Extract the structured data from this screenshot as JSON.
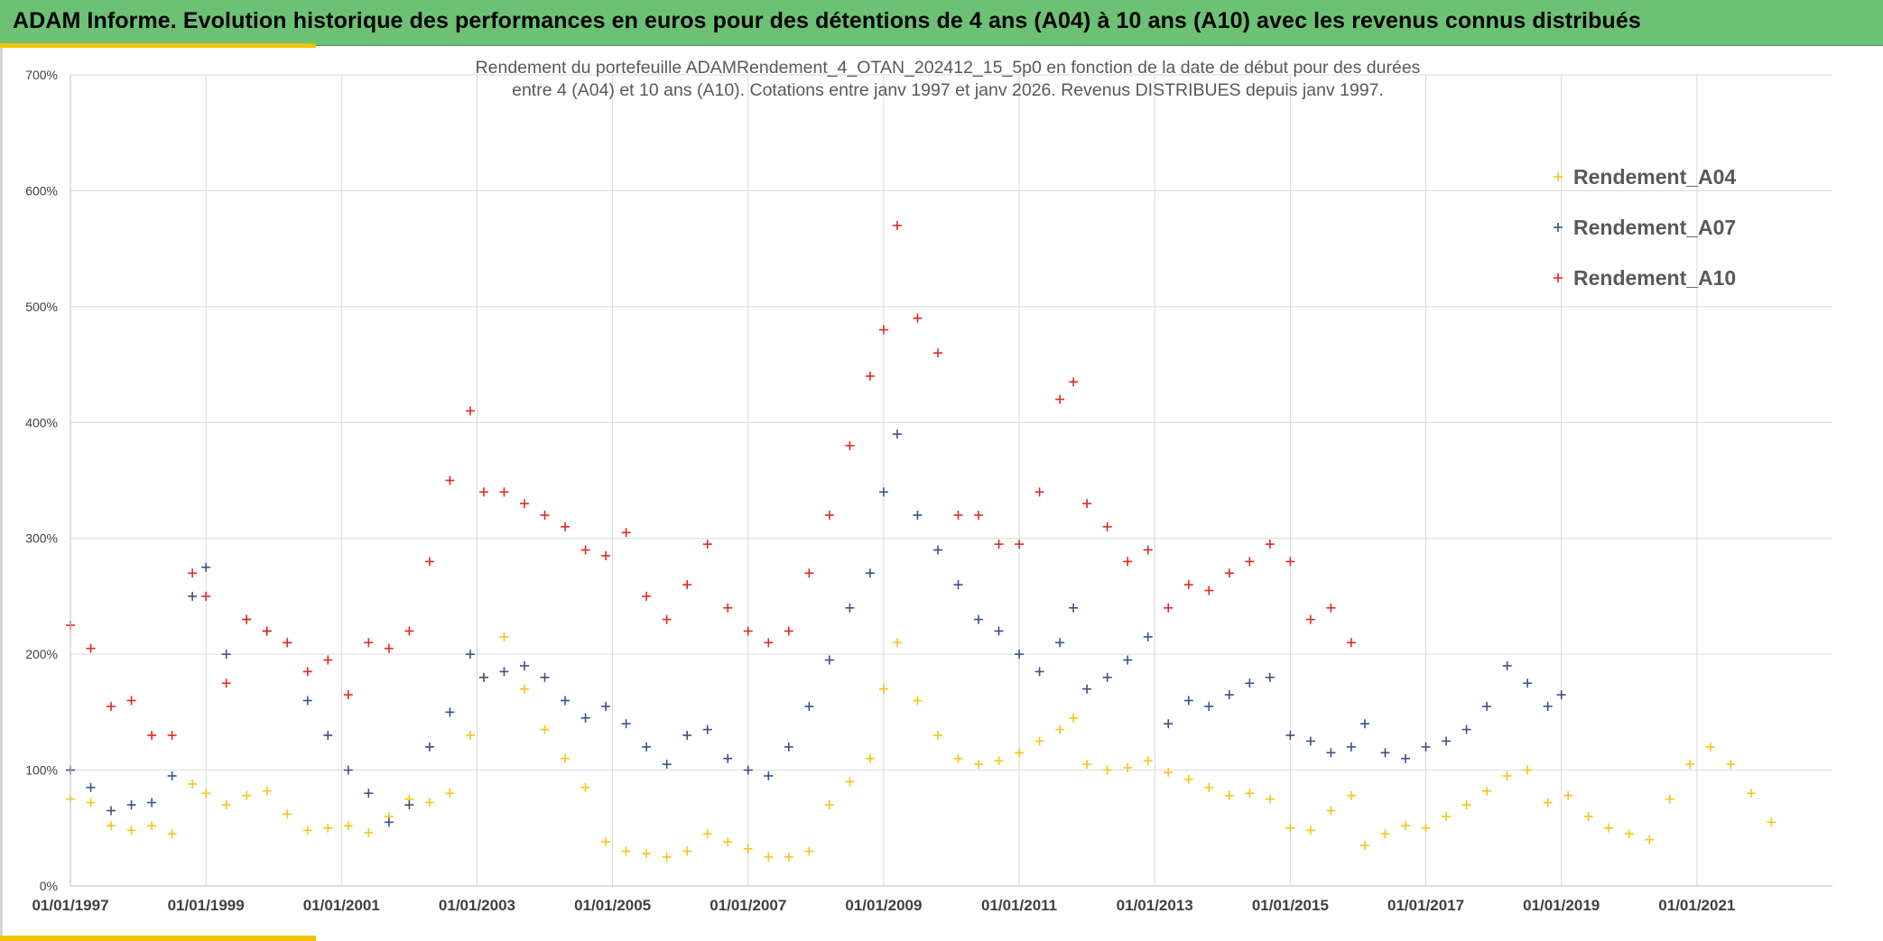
{
  "header": {
    "title": "ADAM Informe. Evolution historique des performances en euros pour des détentions de 4 ans (A04) à 10 ans (A10) avec les revenus connus distribués"
  },
  "chart_data": {
    "type": "scatter",
    "marker": "+",
    "title_lines": [
      "Rendement du portefeuille ADAMRendement_4_OTAN_202412_15_5p0  en fonction de la date de début pour des durées",
      "entre 4 (A04) et 10 ans (A10). Cotations entre janv 1997 et janv 2026. Revenus DISTRIBUES depuis janv 1997."
    ],
    "ylim": [
      0,
      7
    ],
    "yticks": [
      0,
      1,
      2,
      3,
      4,
      5,
      6,
      7
    ],
    "ytick_labels": [
      "0%",
      "100%",
      "200%",
      "300%",
      "400%",
      "500%",
      "600%",
      "700%"
    ],
    "xlim": [
      1997.0,
      2023.0
    ],
    "xticks": [
      1997,
      1999,
      2001,
      2003,
      2005,
      2007,
      2009,
      2011,
      2013,
      2015,
      2017,
      2019,
      2021
    ],
    "xtick_labels": [
      "01/01/1997",
      "01/01/1999",
      "01/01/2001",
      "01/01/2003",
      "01/01/2005",
      "01/01/2007",
      "01/01/2009",
      "01/01/2011",
      "01/01/2013",
      "01/01/2015",
      "01/01/2017",
      "01/01/2019",
      "01/01/2021"
    ],
    "grid": true,
    "legend_position": "top-right",
    "series": [
      {
        "name": "Rendement_A04",
        "color": "#f5c518",
        "x": [
          1997.0,
          1997.3,
          1997.6,
          1997.9,
          1998.2,
          1998.5,
          1998.8,
          1999.0,
          1999.3,
          1999.6,
          1999.9,
          2000.2,
          2000.5,
          2000.8,
          2001.1,
          2001.4,
          2001.7,
          2002.0,
          2002.3,
          2002.6,
          2002.9,
          2003.1,
          2003.4,
          2003.7,
          2004.0,
          2004.3,
          2004.6,
          2004.9,
          2005.2,
          2005.5,
          2005.8,
          2006.1,
          2006.4,
          2006.7,
          2007.0,
          2007.3,
          2007.6,
          2007.9,
          2008.2,
          2008.5,
          2008.8,
          2009.0,
          2009.2,
          2009.5,
          2009.8,
          2010.1,
          2010.4,
          2010.7,
          2011.0,
          2011.3,
          2011.6,
          2011.8,
          2012.0,
          2012.3,
          2012.6,
          2012.9,
          2013.2,
          2013.5,
          2013.8,
          2014.1,
          2014.4,
          2014.7,
          2015.0,
          2015.3,
          2015.6,
          2015.9,
          2016.1,
          2016.4,
          2016.7,
          2017.0,
          2017.3,
          2017.6,
          2017.9,
          2018.2,
          2018.5,
          2018.8,
          2019.1,
          2019.4,
          2019.7,
          2020.0,
          2020.3,
          2020.6,
          2020.9,
          2021.2,
          2021.5,
          2021.8,
          2022.1
        ],
        "values": [
          0.75,
          0.72,
          0.52,
          0.48,
          0.52,
          0.45,
          0.88,
          0.8,
          0.7,
          0.78,
          0.82,
          0.62,
          0.48,
          0.5,
          0.52,
          0.46,
          0.6,
          0.75,
          0.72,
          0.8,
          1.3,
          1.8,
          2.15,
          1.7,
          1.35,
          1.1,
          0.85,
          0.38,
          0.3,
          0.28,
          0.25,
          0.3,
          0.45,
          0.38,
          0.32,
          0.25,
          0.25,
          0.3,
          0.7,
          0.9,
          1.1,
          1.7,
          2.1,
          1.6,
          1.3,
          1.1,
          1.05,
          1.08,
          1.15,
          1.25,
          1.35,
          1.45,
          1.05,
          1.0,
          1.02,
          1.08,
          0.98,
          0.92,
          0.85,
          0.78,
          0.8,
          0.75,
          0.5,
          0.48,
          0.65,
          0.78,
          0.35,
          0.45,
          0.52,
          0.5,
          0.6,
          0.7,
          0.82,
          0.95,
          1.0,
          0.72,
          0.78,
          0.6,
          0.5,
          0.45,
          0.4,
          0.75,
          1.05,
          1.2,
          1.05,
          0.8,
          0.55
        ]
      },
      {
        "name": "Rendement_A07",
        "color": "#3a5383",
        "x": [
          1997.0,
          1997.3,
          1997.6,
          1997.9,
          1998.2,
          1998.5,
          1998.8,
          1999.0,
          1999.3,
          1999.6,
          1999.9,
          2000.2,
          2000.5,
          2000.8,
          2001.1,
          2001.4,
          2001.7,
          2002.0,
          2002.3,
          2002.6,
          2002.9,
          2003.1,
          2003.4,
          2003.7,
          2004.0,
          2004.3,
          2004.6,
          2004.9,
          2005.2,
          2005.5,
          2005.8,
          2006.1,
          2006.4,
          2006.7,
          2007.0,
          2007.3,
          2007.6,
          2007.9,
          2008.2,
          2008.5,
          2008.8,
          2009.0,
          2009.2,
          2009.5,
          2009.8,
          2010.1,
          2010.4,
          2010.7,
          2011.0,
          2011.3,
          2011.6,
          2011.8,
          2012.0,
          2012.3,
          2012.6,
          2012.9,
          2013.2,
          2013.5,
          2013.8,
          2014.1,
          2014.4,
          2014.7,
          2015.0,
          2015.3,
          2015.6,
          2015.9,
          2016.1,
          2016.4,
          2016.7,
          2017.0,
          2017.3,
          2017.6,
          2017.9,
          2018.2,
          2018.5,
          2018.8,
          2019.0
        ],
        "values": [
          1.0,
          0.85,
          0.65,
          0.7,
          0.72,
          0.95,
          2.5,
          2.75,
          2.0,
          2.3,
          2.2,
          2.1,
          1.6,
          1.3,
          1.0,
          0.8,
          0.55,
          0.7,
          1.2,
          1.5,
          2.0,
          1.8,
          1.85,
          1.9,
          1.8,
          1.6,
          1.45,
          1.55,
          1.4,
          1.2,
          1.05,
          1.3,
          1.35,
          1.1,
          1.0,
          0.95,
          1.2,
          1.55,
          1.95,
          2.4,
          2.7,
          3.4,
          3.9,
          3.2,
          2.9,
          2.6,
          2.3,
          2.2,
          2.0,
          1.85,
          2.1,
          2.4,
          1.7,
          1.8,
          1.95,
          2.15,
          1.4,
          1.6,
          1.55,
          1.65,
          1.75,
          1.8,
          1.3,
          1.25,
          1.15,
          1.2,
          1.4,
          1.15,
          1.1,
          1.2,
          1.25,
          1.35,
          1.55,
          1.9,
          1.75,
          1.55,
          1.65
        ]
      },
      {
        "name": "Rendement_A10",
        "color": "#e02828",
        "x": [
          1997.0,
          1997.3,
          1997.6,
          1997.9,
          1998.2,
          1998.5,
          1998.8,
          1999.0,
          1999.3,
          1999.6,
          1999.9,
          2000.2,
          2000.5,
          2000.8,
          2001.1,
          2001.4,
          2001.7,
          2002.0,
          2002.3,
          2002.6,
          2002.9,
          2003.1,
          2003.4,
          2003.7,
          2004.0,
          2004.3,
          2004.6,
          2004.9,
          2005.2,
          2005.5,
          2005.8,
          2006.1,
          2006.4,
          2006.7,
          2007.0,
          2007.3,
          2007.6,
          2007.9,
          2008.2,
          2008.5,
          2008.8,
          2009.0,
          2009.2,
          2009.5,
          2009.8,
          2010.1,
          2010.4,
          2010.7,
          2011.0,
          2011.3,
          2011.6,
          2011.8,
          2012.0,
          2012.3,
          2012.6,
          2012.9,
          2013.2,
          2013.5,
          2013.8,
          2014.1,
          2014.4,
          2014.7,
          2015.0,
          2015.3,
          2015.6,
          2015.9
        ],
        "values": [
          2.25,
          2.05,
          1.55,
          1.6,
          1.3,
          1.3,
          2.7,
          2.5,
          1.75,
          2.3,
          2.2,
          2.1,
          1.85,
          1.95,
          1.65,
          2.1,
          2.05,
          2.2,
          2.8,
          3.5,
          4.1,
          3.4,
          3.4,
          3.3,
          3.2,
          3.1,
          2.9,
          2.85,
          3.05,
          2.5,
          2.3,
          2.6,
          2.95,
          2.4,
          2.2,
          2.1,
          2.2,
          2.7,
          3.2,
          3.8,
          4.4,
          4.8,
          5.7,
          4.9,
          4.6,
          3.2,
          3.2,
          2.95,
          2.95,
          3.4,
          4.2,
          4.35,
          3.3,
          3.1,
          2.8,
          2.9,
          2.4,
          2.6,
          2.55,
          2.7,
          2.8,
          2.95,
          2.8,
          2.3,
          2.4,
          2.1
        ]
      }
    ]
  }
}
